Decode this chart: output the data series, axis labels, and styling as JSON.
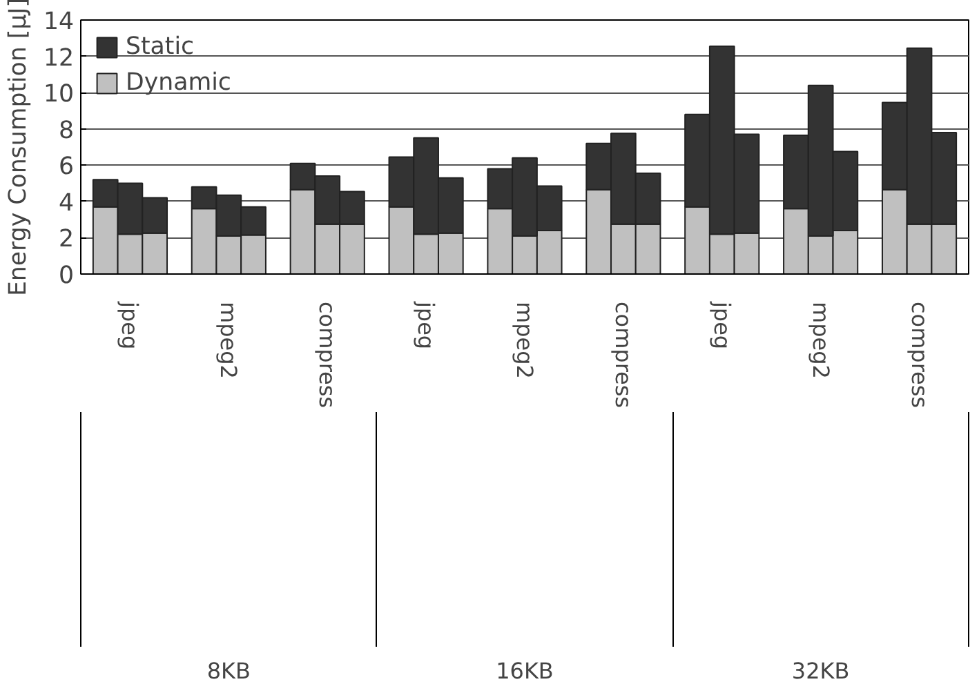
{
  "chart_data": {
    "type": "bar",
    "stacked": true,
    "ylabel": "Energy Consumption [μJ]",
    "categories": [
      null,
      "jpeg",
      null,
      null,
      "mpeg2",
      null,
      null,
      "compress",
      null,
      null,
      "jpeg",
      null,
      null,
      "mpeg2",
      null,
      null,
      "compress",
      null,
      null,
      "jpeg",
      null,
      null,
      "mpeg2",
      null,
      null,
      "compress",
      null
    ],
    "series": [
      {
        "name": "Dynamic",
        "color": "#c0c0c0",
        "values": [
          3.7,
          2.2,
          2.25,
          3.6,
          2.1,
          2.15,
          4.65,
          2.75,
          2.75,
          3.7,
          2.2,
          2.25,
          3.6,
          2.1,
          2.4,
          4.65,
          2.75,
          2.75,
          3.7,
          2.2,
          2.25,
          3.6,
          2.1,
          2.4,
          4.65,
          2.75,
          2.75
        ]
      },
      {
        "name": "Static",
        "color": "#333333",
        "values": [
          1.5,
          2.8,
          1.95,
          1.2,
          2.25,
          1.55,
          1.45,
          2.65,
          1.8,
          2.75,
          5.3,
          3.05,
          2.2,
          4.3,
          2.45,
          2.55,
          5.0,
          2.8,
          5.1,
          10.35,
          5.45,
          4.05,
          8.3,
          4.35,
          4.8,
          9.7,
          5.05
        ]
      }
    ],
    "annotations": [
      "8KB",
      "16KB",
      "32KB"
    ],
    "ylim": [
      0,
      14
    ],
    "yticks": [
      0,
      2,
      4,
      6,
      8,
      10,
      12,
      14
    ],
    "grid": "y",
    "legend": "top left"
  }
}
